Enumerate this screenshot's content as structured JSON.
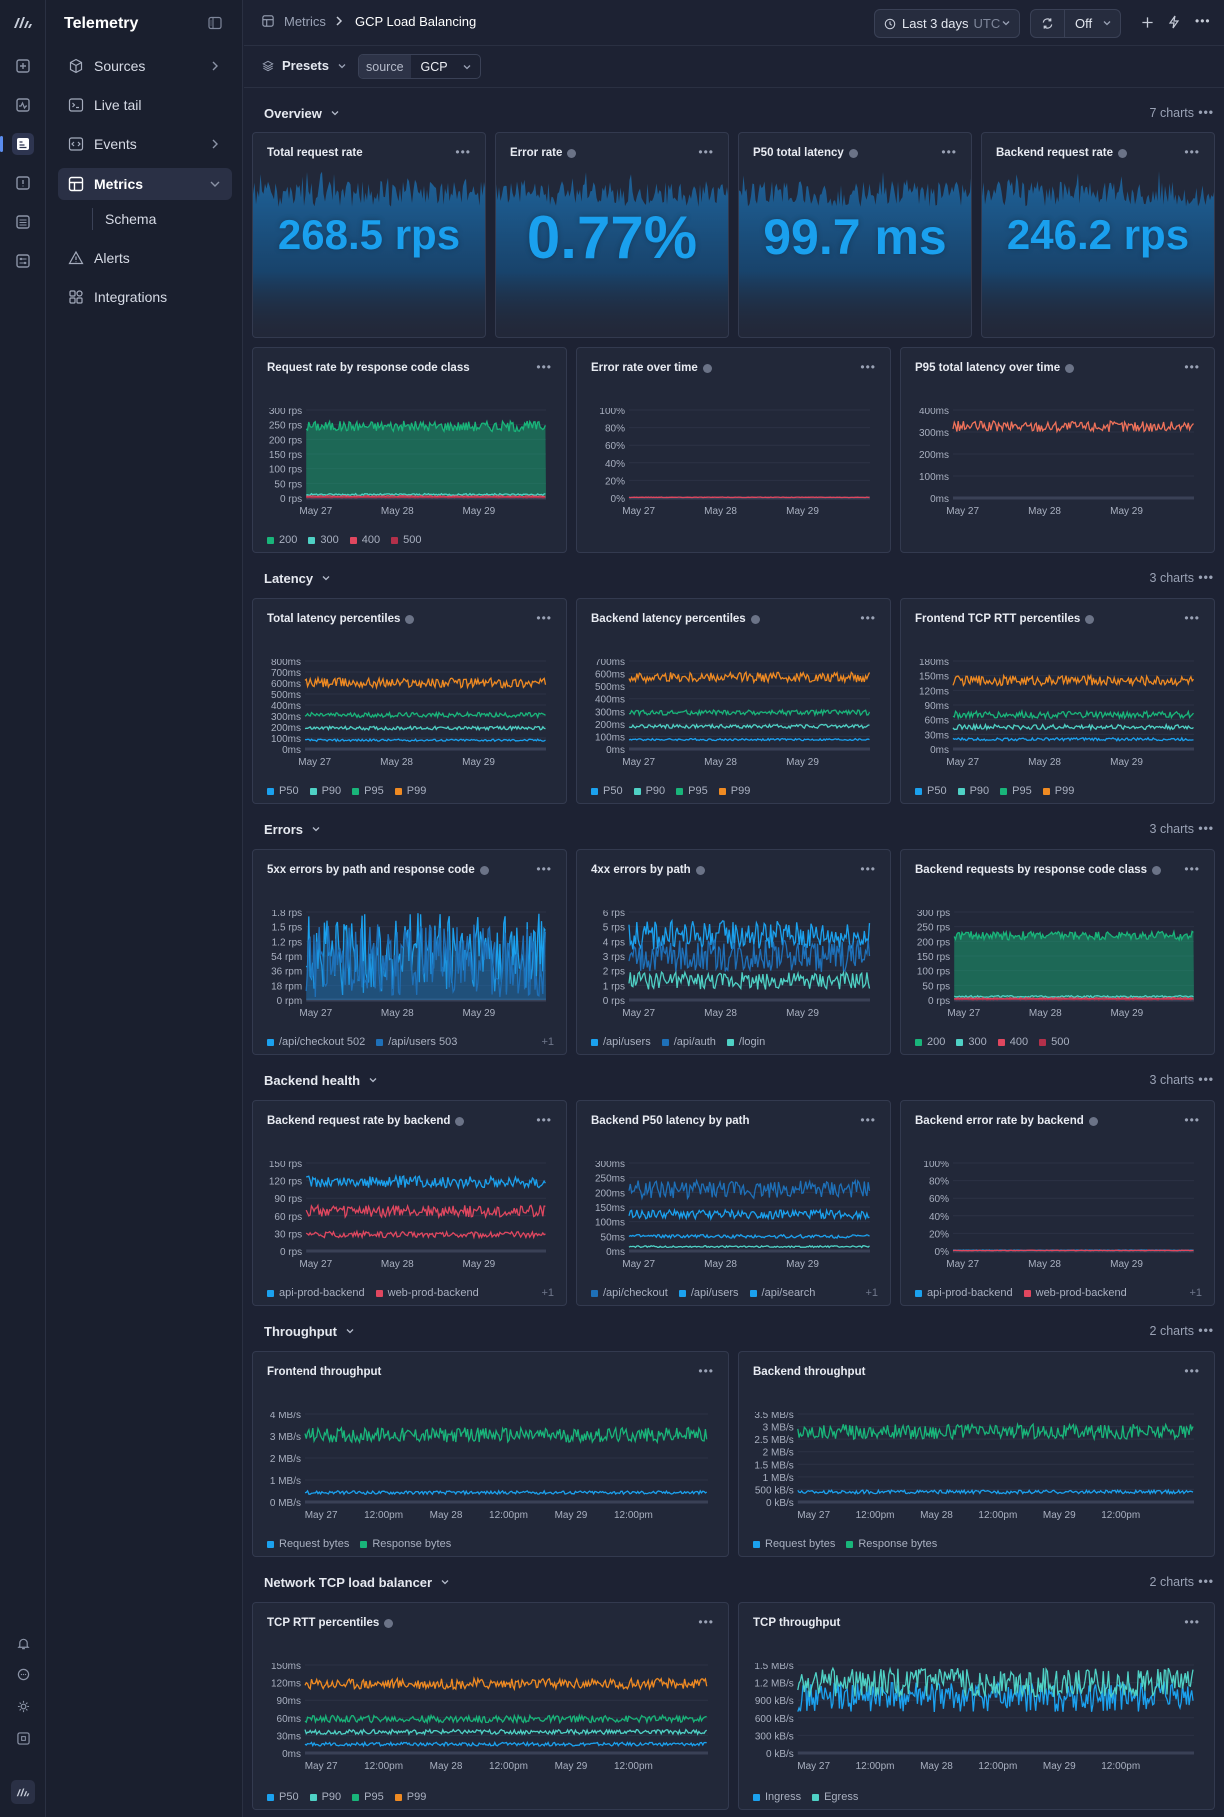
{
  "app": {
    "title": "Telemetry"
  },
  "sidebar": {
    "items": [
      {
        "label": "Sources",
        "icon": "cube-icon"
      },
      {
        "label": "Live tail",
        "icon": "terminal-icon"
      },
      {
        "label": "Events",
        "icon": "code-icon"
      },
      {
        "label": "Metrics",
        "icon": "grid-icon"
      },
      {
        "label": "Alerts",
        "icon": "alert-triangle-icon"
      },
      {
        "label": "Integrations",
        "icon": "puzzle-icon"
      }
    ],
    "sub_item": "Schema"
  },
  "topbar": {
    "breadcrumb_root": "Metrics",
    "breadcrumb_current": "GCP Load Balancing",
    "time_range": "Last 3 days",
    "timezone": "UTC",
    "refresh": "Off"
  },
  "filters": {
    "presets": "Presets",
    "source_key": "source",
    "source_value": "GCP"
  },
  "colors": {
    "blue": "#1ba1ee",
    "teal": "#4fd1c5",
    "green": "#19b57a",
    "orange": "#ef8a22",
    "red": "#e0475f",
    "darkred": "#b3304a",
    "salmon": "#f0725a",
    "navy": "#1e70b8"
  },
  "sections": [
    {
      "title": "Overview",
      "count": "7 charts"
    },
    {
      "title": "Latency",
      "count": "3 charts"
    },
    {
      "title": "Errors",
      "count": "3 charts"
    },
    {
      "title": "Backend health",
      "count": "3 charts"
    },
    {
      "title": "Throughput",
      "count": "2 charts"
    },
    {
      "title": "Network TCP load balancer",
      "count": "2 charts"
    }
  ],
  "stats": [
    {
      "title": "Total request rate",
      "value": "268.5 rps",
      "info": false
    },
    {
      "title": "Error rate",
      "value": "0.77%",
      "info": true
    },
    {
      "title": "P50 total latency",
      "value": "99.7 ms",
      "info": true
    },
    {
      "title": "Backend request rate",
      "value": "246.2 rps",
      "info": true
    }
  ],
  "chart_data": [
    {
      "type": "area",
      "title": "Request rate by response code class",
      "yticks": [
        "300 rps",
        "250 rps",
        "200 rps",
        "150 rps",
        "100 rps",
        "50 rps",
        "0 rps"
      ],
      "ylim": [
        0,
        300
      ],
      "x": [
        "May 27",
        "May 28",
        "May 29"
      ],
      "series": [
        {
          "name": "200",
          "level": 245,
          "amp": 18
        },
        {
          "name": "300",
          "level": 12,
          "amp": 3
        },
        {
          "name": "400",
          "level": 6,
          "amp": 2
        },
        {
          "name": "500",
          "level": 2,
          "amp": 1
        }
      ]
    },
    {
      "type": "line",
      "title": "Error rate over time",
      "yticks": [
        "100%",
        "80%",
        "60%",
        "40%",
        "20%",
        "0%"
      ],
      "ylim": [
        0,
        100
      ],
      "x": [
        "May 27",
        "May 28",
        "May 29"
      ],
      "series": [
        {
          "level": 0.8,
          "amp": 0.3
        }
      ]
    },
    {
      "type": "line",
      "title": "P95 total latency over time",
      "yticks": [
        "400ms",
        "300ms",
        "200ms",
        "100ms",
        "0ms"
      ],
      "ylim": [
        0,
        400
      ],
      "x": [
        "May 27",
        "May 28",
        "May 29"
      ],
      "series": [
        {
          "level": 325,
          "amp": 25
        }
      ]
    },
    {
      "type": "line",
      "title": "Total latency percentiles",
      "yticks": [
        "800ms",
        "700ms",
        "600ms",
        "500ms",
        "400ms",
        "300ms",
        "200ms",
        "100ms",
        "0ms"
      ],
      "ylim": [
        0,
        800
      ],
      "x": [
        "May 27",
        "May 28",
        "May 29"
      ],
      "series": [
        {
          "name": "P50",
          "level": 80,
          "amp": 10
        },
        {
          "name": "P90",
          "level": 190,
          "amp": 16
        },
        {
          "name": "P95",
          "level": 310,
          "amp": 22
        },
        {
          "name": "P99",
          "level": 600,
          "amp": 45
        }
      ]
    },
    {
      "type": "line",
      "title": "Backend latency percentiles",
      "yticks": [
        "700ms",
        "600ms",
        "500ms",
        "400ms",
        "300ms",
        "200ms",
        "100ms",
        "0ms"
      ],
      "ylim": [
        0,
        700
      ],
      "x": [
        "May 27",
        "May 28",
        "May 29"
      ],
      "series": [
        {
          "name": "P50",
          "level": 75,
          "amp": 8
        },
        {
          "name": "P90",
          "level": 180,
          "amp": 15
        },
        {
          "name": "P95",
          "level": 290,
          "amp": 20
        },
        {
          "name": "P99",
          "level": 570,
          "amp": 40
        }
      ]
    },
    {
      "type": "line",
      "title": "Frontend TCP RTT percentiles",
      "yticks": [
        "180ms",
        "150ms",
        "120ms",
        "90ms",
        "60ms",
        "30ms",
        "0ms"
      ],
      "ylim": [
        0,
        180
      ],
      "x": [
        "May 27",
        "May 28",
        "May 29"
      ],
      "series": [
        {
          "name": "P50",
          "level": 20,
          "amp": 3
        },
        {
          "name": "P90",
          "level": 45,
          "amp": 5
        },
        {
          "name": "P95",
          "level": 70,
          "amp": 7
        },
        {
          "name": "P99",
          "level": 140,
          "amp": 10
        }
      ]
    },
    {
      "type": "line",
      "title": "5xx errors by path and response code",
      "yticks": [
        "1.8 rps",
        "1.5 rps",
        "1.2 rps",
        "54 rpm",
        "36 rpm",
        "18 rpm",
        "0 rpm"
      ],
      "ylim": [
        0,
        1.8
      ],
      "x": [
        "May 27",
        "May 28",
        "May 29"
      ],
      "legend_more": "+1",
      "series": [
        {
          "name": "/api/checkout 502",
          "level": 0.95,
          "amp": 0.85
        },
        {
          "name": "/api/users 503",
          "level": 0.8,
          "amp": 0.75
        }
      ]
    },
    {
      "type": "line",
      "title": "4xx errors by path",
      "yticks": [
        "6 rps",
        "5 rps",
        "4 rps",
        "3 rps",
        "2 rps",
        "1 rps",
        "0 rps"
      ],
      "ylim": [
        0,
        6
      ],
      "x": [
        "May 27",
        "May 28",
        "May 29"
      ],
      "series": [
        {
          "name": "/api/users",
          "level": 4.4,
          "amp": 1.0
        },
        {
          "name": "/api/auth",
          "level": 3.0,
          "amp": 1.1
        },
        {
          "name": "/login",
          "level": 1.3,
          "amp": 0.6
        }
      ]
    },
    {
      "type": "area",
      "title": "Backend requests by response code class",
      "yticks": [
        "300 rps",
        "250 rps",
        "200 rps",
        "150 rps",
        "100 rps",
        "50 rps",
        "0 rps"
      ],
      "ylim": [
        0,
        300
      ],
      "x": [
        "May 27",
        "May 28",
        "May 29"
      ],
      "series": [
        {
          "name": "200",
          "level": 220,
          "amp": 15
        },
        {
          "name": "300",
          "level": 12,
          "amp": 3
        },
        {
          "name": "400",
          "level": 6,
          "amp": 2
        },
        {
          "name": "500",
          "level": 2,
          "amp": 1
        }
      ]
    },
    {
      "type": "line",
      "title": "Backend request rate by backend",
      "yticks": [
        "150 rps",
        "120 rps",
        "90 rps",
        "60 rps",
        "30 rps",
        "0 rps"
      ],
      "ylim": [
        0,
        150
      ],
      "x": [
        "May 27",
        "May 28",
        "May 29"
      ],
      "legend_more": "+1",
      "series": [
        {
          "name": "api-prod-backend",
          "level": 118,
          "amp": 10
        },
        {
          "name": "web-prod-backend",
          "level": 68,
          "amp": 10
        },
        {
          "level": 28,
          "amp": 5
        }
      ]
    },
    {
      "type": "line",
      "title": "Backend P50 latency by path",
      "yticks": [
        "300ms",
        "250ms",
        "200ms",
        "150ms",
        "100ms",
        "50ms",
        "0ms"
      ],
      "ylim": [
        0,
        300
      ],
      "x": [
        "May 27",
        "May 28",
        "May 29"
      ],
      "legend_more": "+1",
      "series": [
        {
          "name": "/api/checkout",
          "level": 210,
          "amp": 30
        },
        {
          "name": "/api/users",
          "level": 125,
          "amp": 15
        },
        {
          "name": "/api/search",
          "level": 50,
          "amp": 6
        },
        {
          "level": 15,
          "amp": 3
        }
      ]
    },
    {
      "type": "line",
      "title": "Backend error rate by backend",
      "yticks": [
        "100%",
        "80%",
        "60%",
        "40%",
        "20%",
        "0%"
      ],
      "ylim": [
        0,
        100
      ],
      "x": [
        "May 27",
        "May 28",
        "May 29"
      ],
      "legend_more": "+1",
      "series": [
        {
          "name": "api-prod-backend",
          "level": 0.8,
          "amp": 0.3
        },
        {
          "name": "web-prod-backend",
          "level": 0.6,
          "amp": 0.3
        }
      ]
    },
    {
      "type": "line",
      "title": "Frontend throughput",
      "yticks": [
        "4 MB/s",
        "3 MB/s",
        "2 MB/s",
        "1 MB/s",
        "0 MB/s"
      ],
      "ylim": [
        0,
        4.2
      ],
      "x": [
        "May 27",
        "12:00pm",
        "May 28",
        "12:00pm",
        "May 29",
        "12:00pm"
      ],
      "series": [
        {
          "name": "Request bytes",
          "level": 0.45,
          "amp": 0.08
        },
        {
          "name": "Response bytes",
          "level": 3.2,
          "amp": 0.35
        }
      ]
    },
    {
      "type": "line",
      "title": "Backend throughput",
      "yticks": [
        "3.5 MB/s",
        "3 MB/s",
        "2.5 MB/s",
        "2 MB/s",
        "1.5 MB/s",
        "1 MB/s",
        "500 kB/s",
        "0 kB/s"
      ],
      "ylim": [
        0,
        3.5
      ],
      "x": [
        "May 27",
        "12:00pm",
        "May 28",
        "12:00pm",
        "May 29",
        "12:00pm"
      ],
      "series": [
        {
          "name": "Request bytes",
          "level": 0.4,
          "amp": 0.07
        },
        {
          "name": "Response bytes",
          "level": 2.8,
          "amp": 0.3
        }
      ]
    },
    {
      "type": "line",
      "title": "TCP RTT percentiles",
      "yticks": [
        "150ms",
        "120ms",
        "90ms",
        "60ms",
        "30ms",
        "0ms"
      ],
      "ylim": [
        0,
        150
      ],
      "x": [
        "May 27",
        "12:00pm",
        "May 28",
        "12:00pm",
        "May 29",
        "12:00pm"
      ],
      "series": [
        {
          "name": "P50",
          "level": 15,
          "amp": 3
        },
        {
          "name": "P90",
          "level": 36,
          "amp": 4
        },
        {
          "name": "P95",
          "level": 58,
          "amp": 6
        },
        {
          "name": "P99",
          "level": 118,
          "amp": 9
        }
      ]
    },
    {
      "type": "line",
      "title": "TCP throughput",
      "yticks": [
        "1.5 MB/s",
        "1.2 MB/s",
        "900 kB/s",
        "600 kB/s",
        "300 kB/s",
        "0 kB/s"
      ],
      "ylim": [
        0,
        1.5
      ],
      "x": [
        "May 27",
        "12:00pm",
        "May 28",
        "12:00pm",
        "May 29",
        "12:00pm"
      ],
      "series": [
        {
          "name": "Ingress",
          "level": 0.95,
          "amp": 0.25
        },
        {
          "name": "Egress",
          "level": 1.2,
          "amp": 0.25
        }
      ]
    }
  ]
}
